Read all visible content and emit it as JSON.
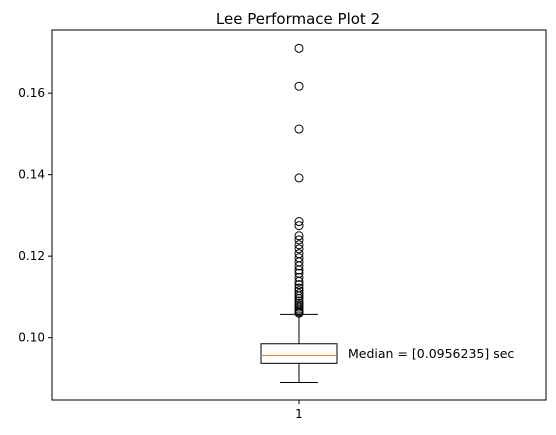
{
  "chart_data": {
    "type": "box",
    "title": "Lee Performace Plot 2",
    "xlabel": "",
    "ylabel": "",
    "categories": [
      "1"
    ],
    "yticks": [
      0.1,
      0.12,
      0.14,
      0.16
    ],
    "ytick_labels": [
      "0.10",
      "0.12",
      "0.14",
      "0.16"
    ],
    "ylim": [
      0.0847,
      0.1755
    ],
    "xlim": [
      0.5,
      1.5
    ],
    "grid": false,
    "box": {
      "position": 1,
      "whisker_low": 0.089,
      "q1": 0.0937,
      "median": 0.0956235,
      "q3": 0.0985,
      "whisker_high": 0.1057
    },
    "outliers": [
      0.106,
      0.1063,
      0.1066,
      0.107,
      0.1075,
      0.108,
      0.1085,
      0.109,
      0.1096,
      0.1102,
      0.1108,
      0.1115,
      0.1122,
      0.113,
      0.1138,
      0.1148,
      0.1158,
      0.1166,
      0.1176,
      0.1186,
      0.1196,
      0.1206,
      0.1218,
      0.1228,
      0.124,
      0.125,
      0.1275,
      0.1285,
      0.1392,
      0.1512,
      0.1617,
      0.171
    ],
    "annotation": "Median = [0.0956235] sec",
    "colors": {
      "median": "#ff7f0e",
      "box": "#000000",
      "axes": "#000000"
    }
  }
}
